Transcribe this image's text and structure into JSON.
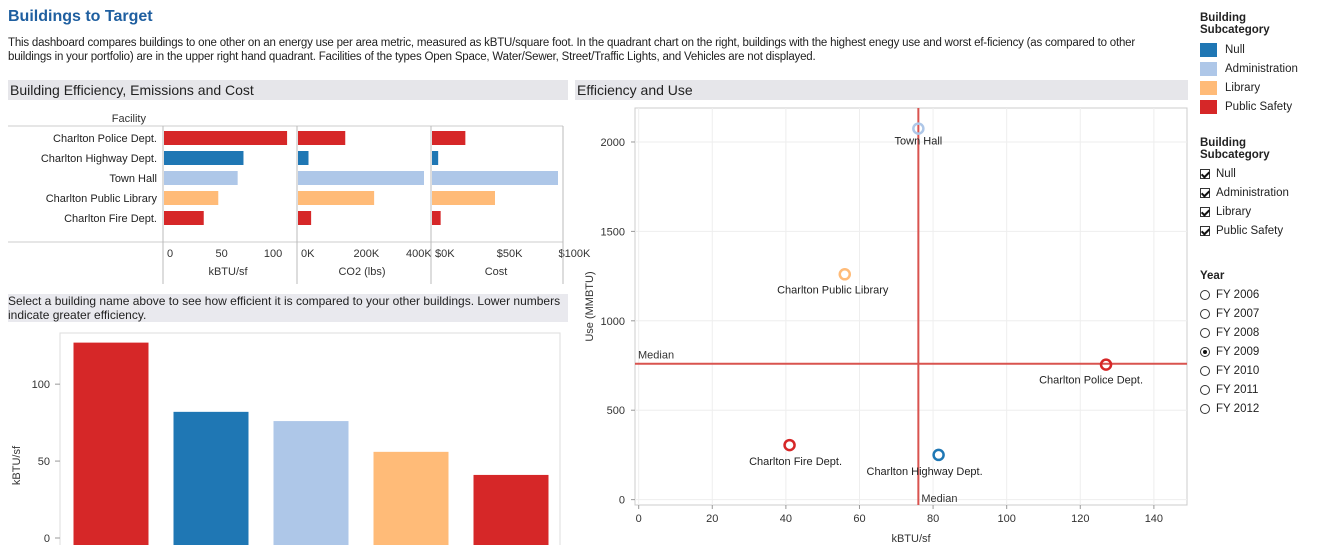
{
  "header": {
    "title": "Buildings to Target",
    "description": "This dashboard compares buildings to one other on an energy use per area metric, measured as kBTU/square foot. In the quadrant chart on the right, buildings with the highest enegy use and worst ef-ficiency (as compared to other buildings in your portfolio) are in the upper right hand quadrant. Facilities of the types Open Space, Water/Sewer, Street/Traffic Lights, and Vehicles are not displayed."
  },
  "sections": {
    "left_top": "Building Efficiency, Emissions and Cost",
    "right": "Efficiency and Use",
    "left_bottom_note": "Select a building name above to see how efficient it is compared to your other buildings. Lower numbers indicate greater efficiency."
  },
  "colors": {
    "Null": "#1f77b4",
    "Administration": "#aec7e8",
    "Library": "#ffbb78",
    "Public Safety": "#d62728",
    "median": "#d9534f"
  },
  "chart_data": [
    {
      "type": "bar",
      "orientation": "horizontal",
      "facet_label": "Facility",
      "categories": [
        "Charlton Police Dept.",
        "Charlton Highway Dept.",
        "Town Hall",
        "Charlton Public Library",
        "Charlton Fire Dept."
      ],
      "category_colors": [
        "Public Safety",
        "Null",
        "Administration",
        "Library",
        "Public Safety"
      ],
      "panels": [
        {
          "xlabel": "kBTU/sf",
          "values": [
            127,
            82,
            76,
            56,
            41
          ],
          "xlim": [
            0,
            130
          ],
          "ticks": [
            0,
            50,
            100
          ],
          "tick_labels": [
            "0",
            "50",
            "100"
          ]
        },
        {
          "xlabel": "CO2 (lbs)",
          "values": [
            180000,
            40000,
            480000,
            290000,
            50000
          ],
          "xlim": [
            0,
            480000
          ],
          "ticks": [
            0,
            200000,
            400000
          ],
          "tick_labels": [
            "0K",
            "200K",
            "400K"
          ]
        },
        {
          "xlabel": "Cost",
          "values": [
            27000,
            5000,
            102000,
            51000,
            7000
          ],
          "xlim": [
            0,
            102000
          ],
          "ticks": [
            0,
            50000,
            100000
          ],
          "tick_labels": [
            "$0K",
            "$50K",
            "$100K"
          ]
        }
      ]
    },
    {
      "type": "bar",
      "categories": [
        "Charlton Police Dept.",
        "Charlton Highway Dept.",
        "Town Hall",
        "Charlton Public Library",
        "Charlton Fire Dept."
      ],
      "category_colors": [
        "Public Safety",
        "Null",
        "Administration",
        "Library",
        "Public Safety"
      ],
      "values": [
        127,
        82,
        76,
        56,
        41
      ],
      "ylabel": "kBTU/sf",
      "ylim": [
        0,
        130
      ],
      "ticks": [
        0,
        50,
        100
      ],
      "tick_labels": [
        "0",
        "50",
        "100"
      ]
    },
    {
      "type": "scatter",
      "xlabel": "kBTU/sf",
      "ylabel": "Use (MMBTU)",
      "xlim": [
        -1,
        149
      ],
      "ylim": [
        -30,
        2190
      ],
      "xticks": [
        0,
        20,
        40,
        60,
        80,
        100,
        120,
        140
      ],
      "yticks": [
        0,
        500,
        1000,
        1500,
        2000
      ],
      "grid": true,
      "median_x": 76,
      "median_y": 760,
      "median_label": "Median",
      "points": [
        {
          "label": "Town Hall",
          "x": 76,
          "y": 2075,
          "category": "Administration"
        },
        {
          "label": "Charlton Public Library",
          "x": 56,
          "y": 1260,
          "category": "Library"
        },
        {
          "label": "Charlton Police Dept.",
          "x": 127,
          "y": 755,
          "category": "Public Safety"
        },
        {
          "label": "Charlton Fire Dept.",
          "x": 41,
          "y": 305,
          "category": "Public Safety"
        },
        {
          "label": "Charlton Highway Dept.",
          "x": 81.5,
          "y": 250,
          "category": "Null"
        }
      ]
    }
  ],
  "legend_color": {
    "title": "Building Subcategory",
    "items": [
      "Null",
      "Administration",
      "Library",
      "Public Safety"
    ]
  },
  "legend_filter": {
    "title": "Building Subcategory",
    "items": [
      "Null",
      "Administration",
      "Library",
      "Public Safety"
    ]
  },
  "year_filter": {
    "title": "Year",
    "options": [
      "FY 2006",
      "FY 2007",
      "FY 2008",
      "FY 2009",
      "FY 2010",
      "FY 2011",
      "FY 2012"
    ],
    "selected": "FY 2009"
  }
}
